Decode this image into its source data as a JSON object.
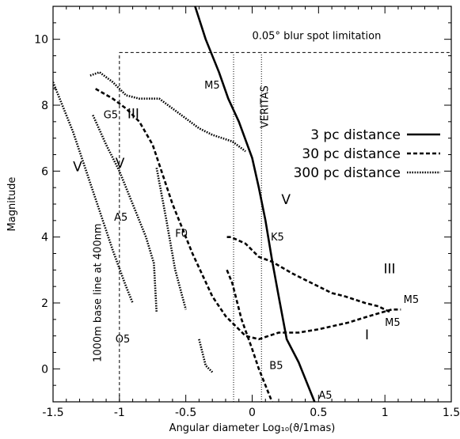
{
  "chart_data": {
    "type": "line",
    "title": "",
    "xlabel": "Angular diameter Log₁₀(ϑ/1mas)",
    "ylabel": "Magnitude",
    "xlim": [
      -1.5,
      1.5
    ],
    "ylim": [
      -1,
      11
    ],
    "xticks": [
      "-1.5",
      "-1",
      "-0.5",
      "0",
      "0.5",
      "1",
      "1.5"
    ],
    "yticks": [
      "0",
      "2",
      "4",
      "6",
      "8",
      "10"
    ],
    "legend_position": "right",
    "series": [
      {
        "name": "3 pc distance",
        "style": "solid",
        "segments": [
          [
            [
              -0.43,
              11
            ],
            [
              -0.35,
              10
            ],
            [
              -0.25,
              9
            ],
            [
              -0.18,
              8.2
            ],
            [
              -0.1,
              7.5
            ],
            [
              0.0,
              6.4
            ],
            [
              0.05,
              5.5
            ],
            [
              0.1,
              4.5
            ],
            [
              0.15,
              3.3
            ],
            [
              0.2,
              2.2
            ],
            [
              0.26,
              0.9
            ],
            [
              0.35,
              0.2
            ],
            [
              0.43,
              -0.6
            ],
            [
              0.47,
              -1
            ]
          ]
        ]
      },
      {
        "name": "30 pc distance",
        "style": "dashed",
        "segments": [
          [
            [
              -1.18,
              8.5
            ],
            [
              -1.05,
              8.2
            ],
            [
              -0.95,
              7.9
            ],
            [
              -0.85,
              7.5
            ],
            [
              -0.75,
              6.8
            ],
            [
              -0.6,
              5
            ],
            [
              -0.45,
              3.5
            ],
            [
              -0.3,
              2.2
            ],
            [
              -0.2,
              1.6
            ],
            [
              -0.05,
              1.0
            ],
            [
              0.05,
              0.9
            ],
            [
              0.2,
              1.1
            ],
            [
              0.35,
              1.1
            ],
            [
              0.5,
              1.2
            ],
            [
              0.72,
              1.4
            ],
            [
              0.88,
              1.6
            ],
            [
              1.05,
              1.8
            ],
            [
              1.12,
              1.8
            ]
          ],
          [
            [
              -0.19,
              4.0
            ],
            [
              -0.16,
              4.0
            ],
            [
              -0.05,
              3.8
            ],
            [
              0.05,
              3.4
            ],
            [
              0.15,
              3.25
            ],
            [
              0.3,
              2.9
            ],
            [
              0.45,
              2.6
            ],
            [
              0.6,
              2.3
            ],
            [
              0.7,
              2.2
            ],
            [
              0.85,
              2.0
            ],
            [
              0.95,
              1.9
            ],
            [
              1.05,
              1.7
            ]
          ],
          [
            [
              -0.19,
              3.0
            ],
            [
              -0.15,
              2.6
            ],
            [
              -0.08,
              1.5
            ],
            [
              0.0,
              0.6
            ],
            [
              0.05,
              0.0
            ],
            [
              0.1,
              -0.5
            ],
            [
              0.15,
              -1
            ]
          ]
        ]
      },
      {
        "name": "300 pc distance",
        "style": "dotted",
        "segments": [
          [
            [
              -1.5,
              8.7
            ],
            [
              -1.45,
              8.2
            ],
            [
              -1.35,
              7.2
            ],
            [
              -1.25,
              6.0
            ],
            [
              -1.15,
              4.8
            ],
            [
              -1.05,
              3.6
            ],
            [
              -0.95,
              2.5
            ],
            [
              -0.9,
              2.0
            ]
          ],
          [
            [
              -1.22,
              8.9
            ],
            [
              -1.15,
              9.0
            ],
            [
              -1.05,
              8.7
            ],
            [
              -0.95,
              8.3
            ],
            [
              -0.85,
              8.2
            ],
            [
              -0.7,
              8.2
            ],
            [
              -0.6,
              7.9
            ],
            [
              -0.5,
              7.6
            ],
            [
              -0.4,
              7.3
            ],
            [
              -0.3,
              7.1
            ],
            [
              -0.15,
              6.9
            ],
            [
              -0.05,
              6.6
            ]
          ],
          [
            [
              -1.2,
              7.7
            ],
            [
              -1.1,
              6.8
            ],
            [
              -1.0,
              6.0
            ],
            [
              -0.9,
              5.0
            ],
            [
              -0.8,
              4.0
            ],
            [
              -0.74,
              3.2
            ],
            [
              -0.72,
              1.7
            ]
          ],
          [
            [
              -0.72,
              6.1
            ],
            [
              -0.65,
              4.6
            ],
            [
              -0.58,
              3.0
            ],
            [
              -0.5,
              1.8
            ]
          ],
          [
            [
              -0.4,
              0.9
            ],
            [
              -0.35,
              0.1
            ],
            [
              -0.3,
              -0.1
            ]
          ]
        ]
      }
    ],
    "reference_lines": [
      {
        "kind": "vline",
        "x": -1.0,
        "y_to": 9.6,
        "style": "dashed"
      },
      {
        "kind": "hline",
        "y": 9.6,
        "x_from": -1.0,
        "x_to": 1.5,
        "style": "dashed"
      },
      {
        "kind": "vline",
        "x": -0.14,
        "y_to": 9.6,
        "style": "dotted"
      },
      {
        "kind": "vline",
        "x": 0.07,
        "y_to": 9.6,
        "style": "dotted"
      }
    ],
    "annotations": [
      {
        "text": "0.05° blur spot limitation",
        "x": 0.0,
        "y": 10.0,
        "type": "plain"
      },
      {
        "text": "1000m base line at 400nm",
        "x": -1.14,
        "y": 0.2,
        "type": "rotated"
      },
      {
        "text": "VERITAS",
        "x": 0.12,
        "y": 7.3,
        "type": "rotated"
      },
      {
        "text": "M5",
        "x": -0.36,
        "y": 8.5,
        "type": "plain"
      },
      {
        "text": "G5",
        "x": -1.12,
        "y": 7.6,
        "type": "plain"
      },
      {
        "text": "A5",
        "x": -1.04,
        "y": 4.5,
        "type": "plain"
      },
      {
        "text": "F0",
        "x": -0.58,
        "y": 4.0,
        "type": "plain"
      },
      {
        "text": "K5",
        "x": 0.14,
        "y": 3.9,
        "type": "plain"
      },
      {
        "text": "O5",
        "x": -1.03,
        "y": 0.8,
        "type": "plain"
      },
      {
        "text": "B5",
        "x": 0.13,
        "y": 0.0,
        "type": "plain"
      },
      {
        "text": "A5",
        "x": 0.5,
        "y": -0.9,
        "type": "plain"
      },
      {
        "text": "M5",
        "x": 1.14,
        "y": 2.0,
        "type": "plain"
      },
      {
        "text": "M5",
        "x": 1.0,
        "y": 1.3,
        "type": "plain"
      },
      {
        "text": "III",
        "x": -0.94,
        "y": 7.6,
        "type": "roman"
      },
      {
        "text": "V",
        "x": -1.35,
        "y": 6.0,
        "type": "roman"
      },
      {
        "text": "V",
        "x": -1.03,
        "y": 6.1,
        "type": "roman"
      },
      {
        "text": "V",
        "x": 0.22,
        "y": 5.0,
        "type": "roman"
      },
      {
        "text": "III",
        "x": 0.99,
        "y": 2.9,
        "type": "roman"
      },
      {
        "text": "I",
        "x": 0.85,
        "y": 0.9,
        "type": "roman"
      }
    ]
  }
}
